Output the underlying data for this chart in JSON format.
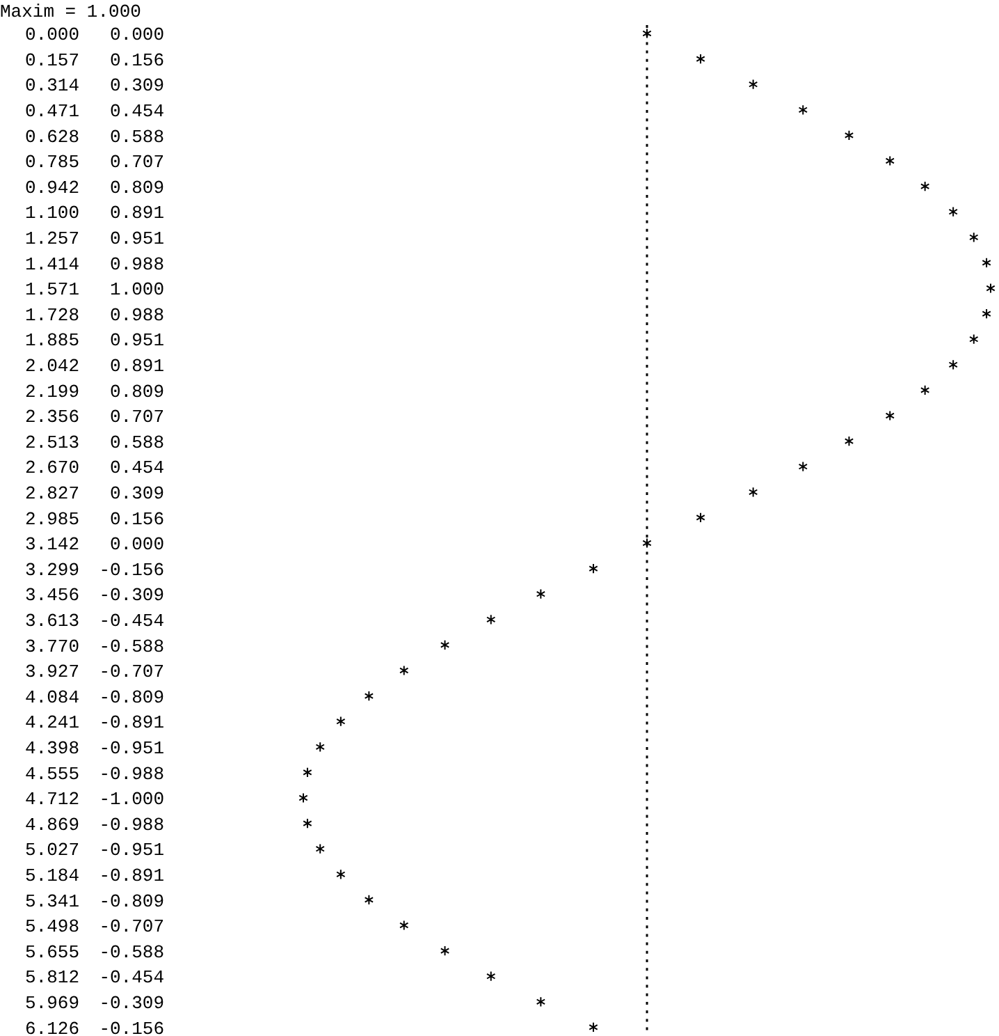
{
  "chart_data": {
    "type": "scatter",
    "orientation": "horizontal",
    "title": "Maxim = 1.000",
    "marker": "cross",
    "ref_lines": [
      {
        "axis": "x",
        "value": 0,
        "line_style": "dotted"
      }
    ],
    "value_labels": [
      "0.000",
      "0.156",
      "0.309",
      "0.454",
      "0.588",
      "0.707",
      "0.809",
      "0.891",
      "0.951",
      "0.988",
      "1.000",
      "0.988",
      "0.951",
      "0.891",
      "0.809",
      "0.707",
      "0.588",
      "0.454",
      "0.309",
      "0.156",
      "0.000",
      "-0.156",
      "-0.309",
      "-0.454",
      "-0.588",
      "-0.707",
      "-0.809",
      "-0.891",
      "-0.951",
      "-0.988",
      "-1.000",
      "-0.988",
      "-0.951",
      "-0.891",
      "-0.809",
      "-0.707",
      "-0.588",
      "-0.454",
      "-0.309",
      "-0.156"
    ],
    "categories": [
      "0.000",
      "0.157",
      "0.314",
      "0.471",
      "0.628",
      "0.785",
      "0.942",
      "1.100",
      "1.257",
      "1.414",
      "1.571",
      "1.728",
      "1.885",
      "2.042",
      "2.199",
      "2.356",
      "2.513",
      "2.670",
      "2.827",
      "2.985",
      "3.142",
      "3.299",
      "3.456",
      "3.613",
      "3.770",
      "3.927",
      "4.084",
      "4.241",
      "4.398",
      "4.555",
      "4.712",
      "4.869",
      "5.027",
      "5.184",
      "5.341",
      "5.498",
      "5.655",
      "5.812",
      "5.969",
      "6.126"
    ],
    "values": [
      0.0,
      0.156,
      0.309,
      0.454,
      0.588,
      0.707,
      0.809,
      0.891,
      0.951,
      0.988,
      1.0,
      0.988,
      0.951,
      0.891,
      0.809,
      0.707,
      0.588,
      0.454,
      0.309,
      0.156,
      0.0,
      -0.156,
      -0.309,
      -0.454,
      -0.588,
      -0.707,
      -0.809,
      -0.891,
      -0.951,
      -0.988,
      -1.0,
      -0.988,
      -0.951,
      -0.891,
      -0.809,
      -0.707,
      -0.588,
      -0.454,
      -0.309,
      -0.156
    ],
    "color": "#000000"
  }
}
